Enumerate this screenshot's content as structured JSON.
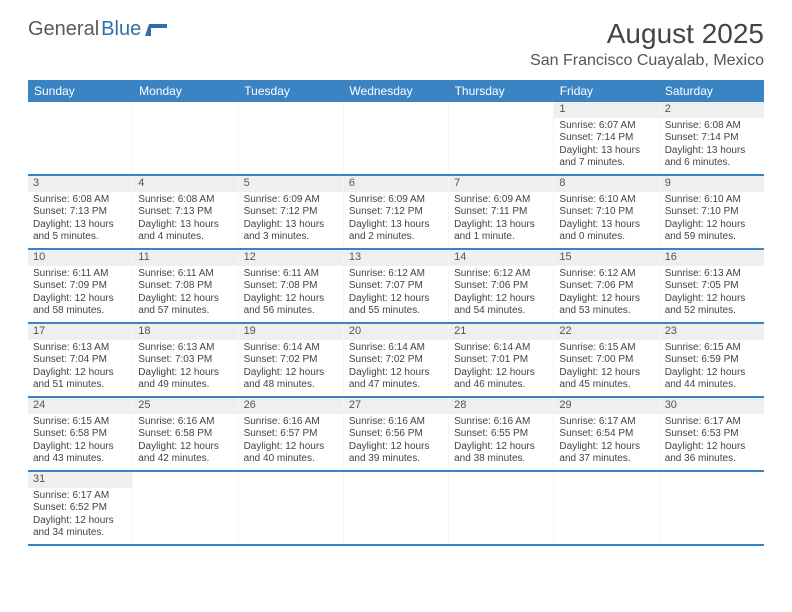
{
  "logo": {
    "general": "General",
    "blue": "Blue"
  },
  "title": "August 2025",
  "location": "San Francisco Cuayalab, Mexico",
  "colors": {
    "header_bg": "#3b84c4",
    "header_text": "#ffffff",
    "row_border": "#3b84c4",
    "daynum_bg": "#efefef"
  },
  "days_of_week": [
    "Sunday",
    "Monday",
    "Tuesday",
    "Wednesday",
    "Thursday",
    "Friday",
    "Saturday"
  ],
  "weeks": [
    [
      {
        "num": "",
        "lines": [
          "",
          "",
          "",
          ""
        ]
      },
      {
        "num": "",
        "lines": [
          "",
          "",
          "",
          ""
        ]
      },
      {
        "num": "",
        "lines": [
          "",
          "",
          "",
          ""
        ]
      },
      {
        "num": "",
        "lines": [
          "",
          "",
          "",
          ""
        ]
      },
      {
        "num": "",
        "lines": [
          "",
          "",
          "",
          ""
        ]
      },
      {
        "num": "1",
        "lines": [
          "Sunrise: 6:07 AM",
          "Sunset: 7:14 PM",
          "Daylight: 13 hours",
          "and 7 minutes."
        ]
      },
      {
        "num": "2",
        "lines": [
          "Sunrise: 6:08 AM",
          "Sunset: 7:14 PM",
          "Daylight: 13 hours",
          "and 6 minutes."
        ]
      }
    ],
    [
      {
        "num": "3",
        "lines": [
          "Sunrise: 6:08 AM",
          "Sunset: 7:13 PM",
          "Daylight: 13 hours",
          "and 5 minutes."
        ]
      },
      {
        "num": "4",
        "lines": [
          "Sunrise: 6:08 AM",
          "Sunset: 7:13 PM",
          "Daylight: 13 hours",
          "and 4 minutes."
        ]
      },
      {
        "num": "5",
        "lines": [
          "Sunrise: 6:09 AM",
          "Sunset: 7:12 PM",
          "Daylight: 13 hours",
          "and 3 minutes."
        ]
      },
      {
        "num": "6",
        "lines": [
          "Sunrise: 6:09 AM",
          "Sunset: 7:12 PM",
          "Daylight: 13 hours",
          "and 2 minutes."
        ]
      },
      {
        "num": "7",
        "lines": [
          "Sunrise: 6:09 AM",
          "Sunset: 7:11 PM",
          "Daylight: 13 hours",
          "and 1 minute."
        ]
      },
      {
        "num": "8",
        "lines": [
          "Sunrise: 6:10 AM",
          "Sunset: 7:10 PM",
          "Daylight: 13 hours",
          "and 0 minutes."
        ]
      },
      {
        "num": "9",
        "lines": [
          "Sunrise: 6:10 AM",
          "Sunset: 7:10 PM",
          "Daylight: 12 hours",
          "and 59 minutes."
        ]
      }
    ],
    [
      {
        "num": "10",
        "lines": [
          "Sunrise: 6:11 AM",
          "Sunset: 7:09 PM",
          "Daylight: 12 hours",
          "and 58 minutes."
        ]
      },
      {
        "num": "11",
        "lines": [
          "Sunrise: 6:11 AM",
          "Sunset: 7:08 PM",
          "Daylight: 12 hours",
          "and 57 minutes."
        ]
      },
      {
        "num": "12",
        "lines": [
          "Sunrise: 6:11 AM",
          "Sunset: 7:08 PM",
          "Daylight: 12 hours",
          "and 56 minutes."
        ]
      },
      {
        "num": "13",
        "lines": [
          "Sunrise: 6:12 AM",
          "Sunset: 7:07 PM",
          "Daylight: 12 hours",
          "and 55 minutes."
        ]
      },
      {
        "num": "14",
        "lines": [
          "Sunrise: 6:12 AM",
          "Sunset: 7:06 PM",
          "Daylight: 12 hours",
          "and 54 minutes."
        ]
      },
      {
        "num": "15",
        "lines": [
          "Sunrise: 6:12 AM",
          "Sunset: 7:06 PM",
          "Daylight: 12 hours",
          "and 53 minutes."
        ]
      },
      {
        "num": "16",
        "lines": [
          "Sunrise: 6:13 AM",
          "Sunset: 7:05 PM",
          "Daylight: 12 hours",
          "and 52 minutes."
        ]
      }
    ],
    [
      {
        "num": "17",
        "lines": [
          "Sunrise: 6:13 AM",
          "Sunset: 7:04 PM",
          "Daylight: 12 hours",
          "and 51 minutes."
        ]
      },
      {
        "num": "18",
        "lines": [
          "Sunrise: 6:13 AM",
          "Sunset: 7:03 PM",
          "Daylight: 12 hours",
          "and 49 minutes."
        ]
      },
      {
        "num": "19",
        "lines": [
          "Sunrise: 6:14 AM",
          "Sunset: 7:02 PM",
          "Daylight: 12 hours",
          "and 48 minutes."
        ]
      },
      {
        "num": "20",
        "lines": [
          "Sunrise: 6:14 AM",
          "Sunset: 7:02 PM",
          "Daylight: 12 hours",
          "and 47 minutes."
        ]
      },
      {
        "num": "21",
        "lines": [
          "Sunrise: 6:14 AM",
          "Sunset: 7:01 PM",
          "Daylight: 12 hours",
          "and 46 minutes."
        ]
      },
      {
        "num": "22",
        "lines": [
          "Sunrise: 6:15 AM",
          "Sunset: 7:00 PM",
          "Daylight: 12 hours",
          "and 45 minutes."
        ]
      },
      {
        "num": "23",
        "lines": [
          "Sunrise: 6:15 AM",
          "Sunset: 6:59 PM",
          "Daylight: 12 hours",
          "and 44 minutes."
        ]
      }
    ],
    [
      {
        "num": "24",
        "lines": [
          "Sunrise: 6:15 AM",
          "Sunset: 6:58 PM",
          "Daylight: 12 hours",
          "and 43 minutes."
        ]
      },
      {
        "num": "25",
        "lines": [
          "Sunrise: 6:16 AM",
          "Sunset: 6:58 PM",
          "Daylight: 12 hours",
          "and 42 minutes."
        ]
      },
      {
        "num": "26",
        "lines": [
          "Sunrise: 6:16 AM",
          "Sunset: 6:57 PM",
          "Daylight: 12 hours",
          "and 40 minutes."
        ]
      },
      {
        "num": "27",
        "lines": [
          "Sunrise: 6:16 AM",
          "Sunset: 6:56 PM",
          "Daylight: 12 hours",
          "and 39 minutes."
        ]
      },
      {
        "num": "28",
        "lines": [
          "Sunrise: 6:16 AM",
          "Sunset: 6:55 PM",
          "Daylight: 12 hours",
          "and 38 minutes."
        ]
      },
      {
        "num": "29",
        "lines": [
          "Sunrise: 6:17 AM",
          "Sunset: 6:54 PM",
          "Daylight: 12 hours",
          "and 37 minutes."
        ]
      },
      {
        "num": "30",
        "lines": [
          "Sunrise: 6:17 AM",
          "Sunset: 6:53 PM",
          "Daylight: 12 hours",
          "and 36 minutes."
        ]
      }
    ],
    [
      {
        "num": "31",
        "lines": [
          "Sunrise: 6:17 AM",
          "Sunset: 6:52 PM",
          "Daylight: 12 hours",
          "and 34 minutes."
        ]
      },
      {
        "num": "",
        "lines": [
          "",
          "",
          "",
          ""
        ]
      },
      {
        "num": "",
        "lines": [
          "",
          "",
          "",
          ""
        ]
      },
      {
        "num": "",
        "lines": [
          "",
          "",
          "",
          ""
        ]
      },
      {
        "num": "",
        "lines": [
          "",
          "",
          "",
          ""
        ]
      },
      {
        "num": "",
        "lines": [
          "",
          "",
          "",
          ""
        ]
      },
      {
        "num": "",
        "lines": [
          "",
          "",
          "",
          ""
        ]
      }
    ]
  ]
}
